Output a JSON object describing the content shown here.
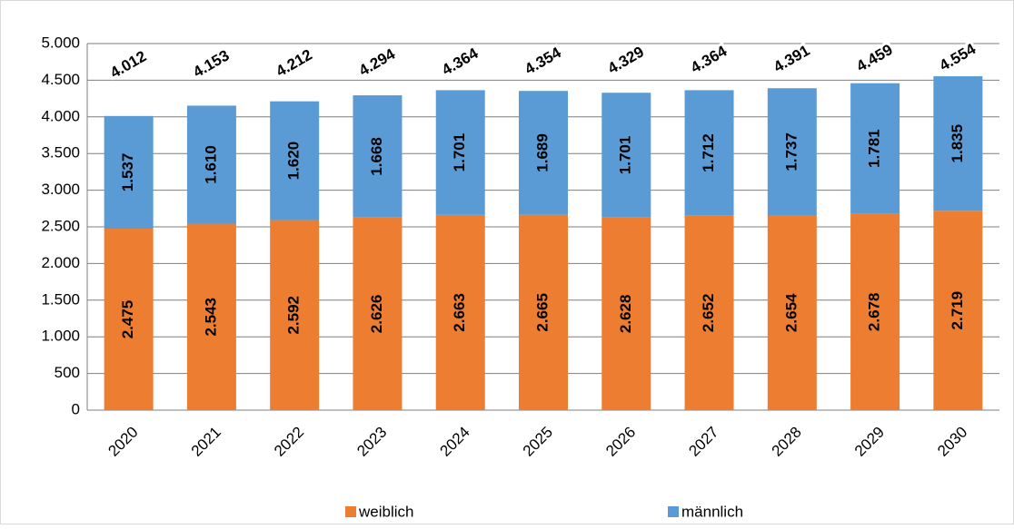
{
  "chart_data": {
    "type": "stacked_bar",
    "categories": [
      "2020",
      "2021",
      "2022",
      "2023",
      "2024",
      "2025",
      "2026",
      "2027",
      "2028",
      "2029",
      "2030"
    ],
    "series": [
      {
        "name": "weiblich",
        "color": "#ED7D31",
        "values": [
          2475,
          2543,
          2592,
          2626,
          2663,
          2665,
          2628,
          2652,
          2654,
          2678,
          2719
        ],
        "value_labels": [
          "2.475",
          "2.543",
          "2.592",
          "2.626",
          "2.663",
          "2.665",
          "2.628",
          "2.652",
          "2.654",
          "2.678",
          "2.719"
        ]
      },
      {
        "name": "männlich",
        "color": "#5B9BD5",
        "values": [
          1537,
          1610,
          1620,
          1668,
          1701,
          1689,
          1701,
          1712,
          1737,
          1781,
          1835
        ],
        "value_labels": [
          "1.537",
          "1.610",
          "1.620",
          "1.668",
          "1.701",
          "1.689",
          "1.701",
          "1.712",
          "1.737",
          "1.781",
          "1.835"
        ]
      }
    ],
    "totals": {
      "values": [
        4012,
        4153,
        4212,
        4294,
        4364,
        4354,
        4329,
        4364,
        4391,
        4459,
        4554
      ],
      "value_labels": [
        "4.012",
        "4.153",
        "4.212",
        "4.294",
        "4.364",
        "4.354",
        "4.329",
        "4.364",
        "4.391",
        "4.459",
        "4.554"
      ]
    },
    "ylim": [
      0,
      5000
    ],
    "yticks": [
      0,
      500,
      {
        "value": 1000,
        "label": "1.000"
      },
      {
        "value": 1500,
        "label": "1.500"
      },
      {
        "value": 2000,
        "label": "2.000"
      },
      {
        "value": 2500,
        "label": "2.500"
      },
      {
        "value": 3000,
        "label": "3.000"
      },
      {
        "value": 3500,
        "label": "3.500"
      },
      {
        "value": 4000,
        "label": "4.000"
      },
      {
        "value": 4500,
        "label": "4.500"
      },
      {
        "value": 5000,
        "label": "5.000"
      }
    ],
    "grid": true,
    "legend": "bottom"
  }
}
